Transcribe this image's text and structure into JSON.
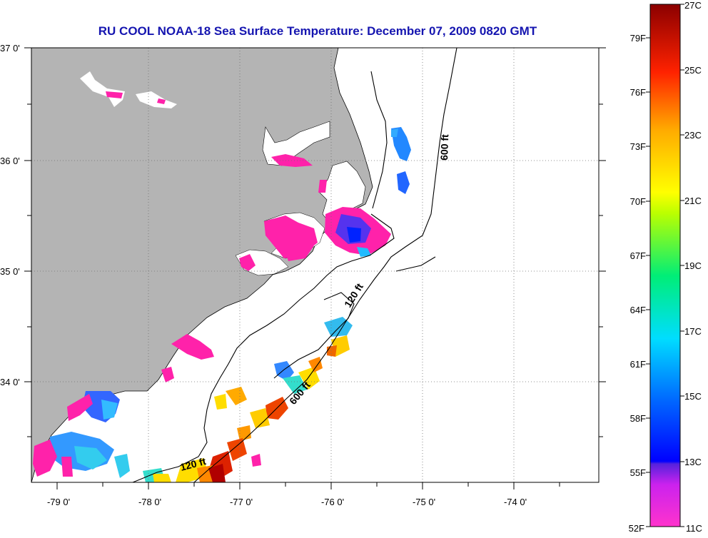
{
  "title": "RU COOL  NOAA-18  Sea Surface Temperature:  December 07, 2009 0820 GMT",
  "lat_labels": [
    "37 0'",
    "36 0'",
    "35 0'",
    "34 0'"
  ],
  "lon_labels": [
    "-79 0'",
    "-78 0'",
    "-77 0'",
    "-76 0'",
    "-75 0'",
    "-74 0'"
  ],
  "contours": {
    "north_600": "600 ft",
    "mid_120": "120 ft",
    "south_600": "600 ft",
    "south_120": "120 ft"
  },
  "colorbar": {
    "celsius": [
      "27C",
      "25C",
      "23C",
      "21C",
      "19C",
      "17C",
      "15C",
      "13C",
      "11C"
    ],
    "fahrenheit": [
      "79F",
      "76F",
      "73F",
      "70F",
      "67F",
      "64F",
      "61F",
      "58F",
      "55F",
      "52F"
    ]
  },
  "colors": {
    "land": "#b4b4b4",
    "title": "#1515b0",
    "grid": "#707070"
  }
}
